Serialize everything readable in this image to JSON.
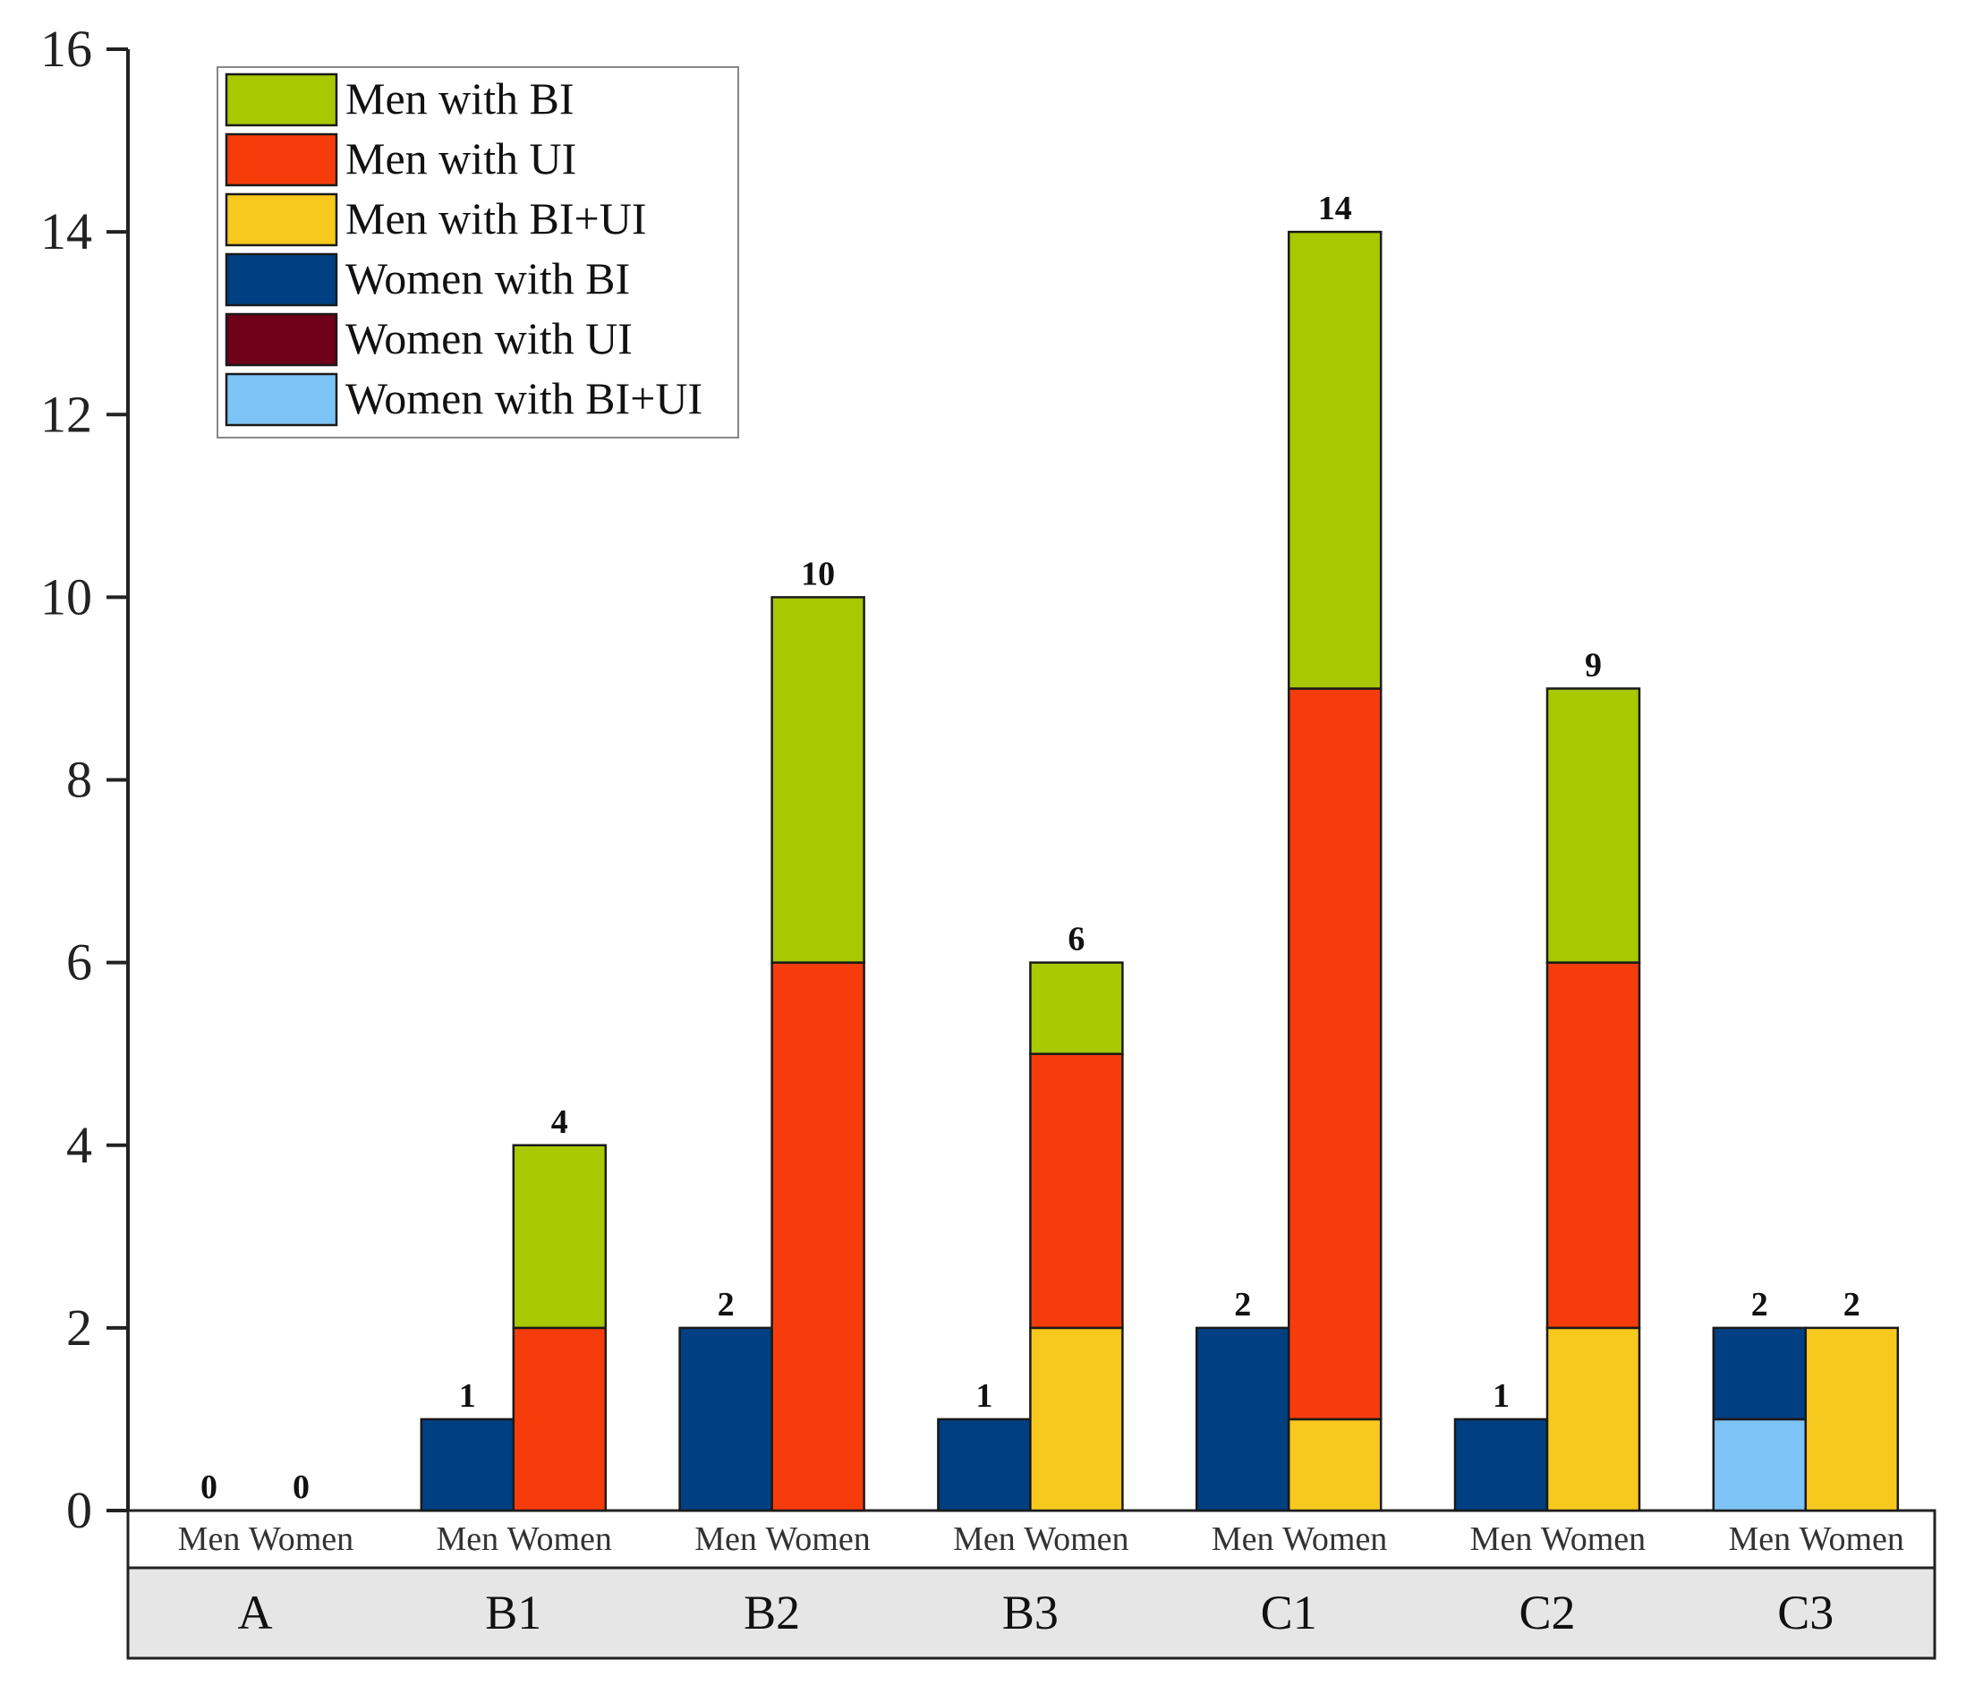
{
  "chart_data": {
    "type": "bar",
    "stacked": true,
    "title": "",
    "xlabel": "",
    "ylabel": "",
    "ylim": [
      0,
      16
    ],
    "yticks": [
      0,
      2,
      4,
      6,
      8,
      10,
      12,
      14,
      16
    ],
    "grid": false,
    "legend_position": "top-left",
    "groups": [
      "A",
      "B1",
      "B2",
      "B3",
      "C1",
      "C2",
      "C3"
    ],
    "subgroups": [
      "Men",
      "Women"
    ],
    "series": [
      {
        "name": "Men with BI",
        "subgroup": "Women",
        "color": "#a8c800",
        "values": [
          0,
          2,
          4,
          1,
          5,
          3,
          0
        ]
      },
      {
        "name": "Men with UI",
        "subgroup": "Women",
        "color": "#f53c0a",
        "values": [
          0,
          2,
          6,
          3,
          8,
          4,
          0
        ]
      },
      {
        "name": "Men with BI+UI",
        "subgroup": "Women",
        "color": "#f7c81e",
        "values": [
          0,
          0,
          0,
          2,
          1,
          2,
          2
        ]
      },
      {
        "name": "Women with BI",
        "subgroup": "Men",
        "color": "#003f82",
        "values": [
          0,
          1,
          2,
          1,
          2,
          1,
          1
        ]
      },
      {
        "name": "Women with UI",
        "subgroup": "Men",
        "color": "#6e0019",
        "values": [
          0,
          0,
          0,
          0,
          0,
          0,
          0
        ]
      },
      {
        "name": "Women with BI+UI",
        "subgroup": "Men",
        "color": "#7dc3f5",
        "values": [
          0,
          0,
          0,
          0,
          0,
          0,
          1
        ]
      }
    ],
    "totals": {
      "Men": [
        0,
        1,
        2,
        1,
        2,
        1,
        2
      ],
      "Women": [
        0,
        4,
        10,
        6,
        14,
        9,
        2
      ]
    },
    "total_labels": {
      "Men": [
        "0",
        "1",
        "2",
        "1",
        "2",
        "1",
        "2"
      ],
      "Women": [
        "0",
        "4",
        "10",
        "6",
        "14",
        "9",
        "2"
      ]
    },
    "ytick_labels": [
      "0",
      "2",
      "4",
      "6",
      "8",
      "10",
      "12",
      "14",
      "16"
    ],
    "subgroup_labels": [
      "Men",
      "Women"
    ],
    "style": {
      "stroke": "#1a1a1a",
      "axis": "#222222",
      "group_band": "#e6e6e6"
    }
  }
}
